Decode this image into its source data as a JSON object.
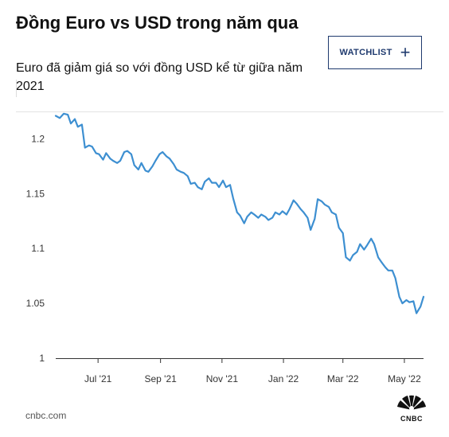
{
  "header": {
    "title": "Đồng Euro vs USD trong năm qua",
    "subtitle": "Euro đã giảm giá so với đồng USD kể từ giữa năm 2021"
  },
  "watchlist_button": {
    "label": "WATCHLIST",
    "icon": "plus-icon"
  },
  "footer": {
    "source": "cnbc.com",
    "logo": "CNBC"
  },
  "colors": {
    "line": "#3d8fd1",
    "button_border": "#1f3a6e"
  },
  "chart_data": {
    "type": "line",
    "title": "",
    "xlabel": "",
    "ylabel": "",
    "ylim": [
      1.0,
      1.225
    ],
    "xlim": [
      "2021-05-20",
      "2022-05-20"
    ],
    "grid": false,
    "y_ticks": [
      1.0,
      1.05,
      1.1,
      1.15,
      1.2
    ],
    "y_tick_labels": [
      "1",
      "1.05",
      "1.1",
      "1.15",
      "1.2"
    ],
    "x_ticks": [
      "2021-07-01",
      "2021-09-01",
      "2021-11-01",
      "2022-01-01",
      "2022-03-01",
      "2022-05-01"
    ],
    "x_tick_labels": [
      "Jul '21",
      "Sep '21",
      "Nov '21",
      "Jan '22",
      "Mar '22",
      "May '22"
    ],
    "series": [
      {
        "x": [
          "2021-05-20",
          "2021-05-24",
          "2021-05-28",
          "2021-06-01",
          "2021-06-04",
          "2021-06-08",
          "2021-06-11",
          "2021-06-15",
          "2021-06-18",
          "2021-06-22",
          "2021-06-25",
          "2021-06-29",
          "2021-07-02",
          "2021-07-06",
          "2021-07-09",
          "2021-07-13",
          "2021-07-16",
          "2021-07-20",
          "2021-07-23",
          "2021-07-27",
          "2021-07-30",
          "2021-08-03",
          "2021-08-06",
          "2021-08-10",
          "2021-08-13",
          "2021-08-17",
          "2021-08-20",
          "2021-08-24",
          "2021-08-27",
          "2021-08-31",
          "2021-09-03",
          "2021-09-07",
          "2021-09-10",
          "2021-09-14",
          "2021-09-17",
          "2021-09-21",
          "2021-09-24",
          "2021-09-28",
          "2021-10-01",
          "2021-10-05",
          "2021-10-08",
          "2021-10-12",
          "2021-10-15",
          "2021-10-19",
          "2021-10-22",
          "2021-10-26",
          "2021-10-29",
          "2021-11-02",
          "2021-11-05",
          "2021-11-09",
          "2021-11-12",
          "2021-11-16",
          "2021-11-19",
          "2021-11-23",
          "2021-11-26",
          "2021-11-30",
          "2021-12-03",
          "2021-12-07",
          "2021-12-10",
          "2021-12-14",
          "2021-12-17",
          "2021-12-21",
          "2021-12-24",
          "2021-12-28",
          "2021-12-31",
          "2022-01-04",
          "2022-01-07",
          "2022-01-11",
          "2022-01-14",
          "2022-01-18",
          "2022-01-21",
          "2022-01-25",
          "2022-01-28",
          "2022-02-01",
          "2022-02-04",
          "2022-02-08",
          "2022-02-11",
          "2022-02-15",
          "2022-02-18",
          "2022-02-22",
          "2022-02-25",
          "2022-03-01",
          "2022-03-04",
          "2022-03-08",
          "2022-03-11",
          "2022-03-15",
          "2022-03-18",
          "2022-03-22",
          "2022-03-25",
          "2022-03-29",
          "2022-04-01",
          "2022-04-05",
          "2022-04-08",
          "2022-04-12",
          "2022-04-15",
          "2022-04-19",
          "2022-04-22",
          "2022-04-26",
          "2022-04-29",
          "2022-05-03",
          "2022-05-06",
          "2022-05-10",
          "2022-05-13",
          "2022-05-17",
          "2022-05-20"
        ],
        "values": [
          1.221,
          1.219,
          1.223,
          1.222,
          1.214,
          1.218,
          1.211,
          1.213,
          1.192,
          1.194,
          1.193,
          1.187,
          1.186,
          1.181,
          1.187,
          1.182,
          1.18,
          1.178,
          1.18,
          1.188,
          1.189,
          1.186,
          1.176,
          1.172,
          1.178,
          1.171,
          1.17,
          1.175,
          1.18,
          1.186,
          1.188,
          1.184,
          1.182,
          1.177,
          1.172,
          1.17,
          1.169,
          1.166,
          1.159,
          1.16,
          1.156,
          1.154,
          1.161,
          1.164,
          1.16,
          1.16,
          1.156,
          1.162,
          1.156,
          1.158,
          1.146,
          1.133,
          1.13,
          1.123,
          1.129,
          1.133,
          1.131,
          1.128,
          1.131,
          1.129,
          1.126,
          1.128,
          1.133,
          1.131,
          1.134,
          1.131,
          1.136,
          1.144,
          1.141,
          1.136,
          1.133,
          1.128,
          1.117,
          1.127,
          1.145,
          1.143,
          1.14,
          1.138,
          1.133,
          1.131,
          1.119,
          1.114,
          1.092,
          1.089,
          1.094,
          1.097,
          1.104,
          1.099,
          1.103,
          1.109,
          1.104,
          1.092,
          1.088,
          1.083,
          1.08,
          1.08,
          1.073,
          1.056,
          1.05,
          1.053,
          1.051,
          1.052,
          1.041,
          1.047,
          1.056
        ]
      }
    ]
  }
}
